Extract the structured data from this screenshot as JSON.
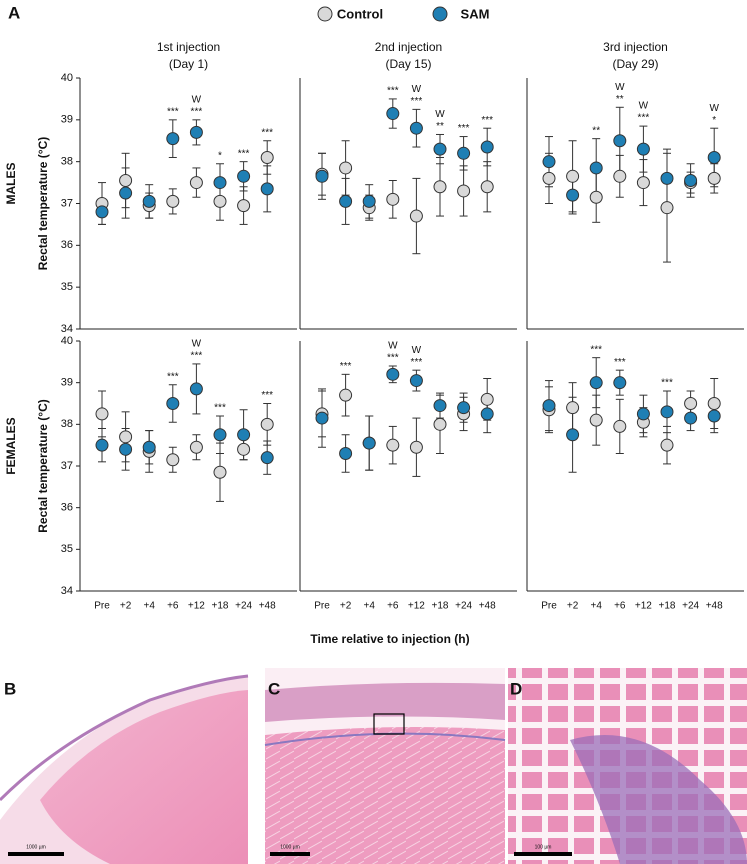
{
  "figure": {
    "panel_label": "A",
    "xlabel": "Time relative to injection (h)"
  },
  "histology": [
    {
      "label": "B",
      "scale_bar": "1000 µm"
    },
    {
      "label": "C",
      "scale_bar": "1000 µm"
    },
    {
      "label": "D",
      "scale_bar": "100 µm"
    }
  ],
  "chart_data": [
    {
      "type": "dot",
      "title": "1st injection",
      "subtitle": "(Day 1)",
      "row_label": "MALES",
      "ylabel": "Rectal temperature (°C)",
      "categories": [
        null,
        null,
        null,
        null,
        null,
        null,
        null,
        null
      ],
      "series": [
        {
          "name": "Control",
          "color": "#d9d9d9",
          "values": [
            37.0,
            37.55,
            36.95,
            37.05,
            37.5,
            37.05,
            36.95,
            38.1
          ],
          "errors": [
            0.5,
            0.65,
            0.3,
            0.3,
            0.35,
            0.45,
            0.45,
            0.4
          ]
        },
        {
          "name": "SAM",
          "color": "#1f7fb4",
          "values": [
            36.8,
            37.25,
            37.05,
            38.55,
            38.7,
            37.5,
            37.65,
            37.35
          ],
          "errors": [
            0.3,
            0.6,
            0.4,
            0.45,
            0.3,
            0.45,
            0.35,
            0.55
          ]
        }
      ],
      "annotations": [
        null,
        null,
        null,
        "***",
        [
          "W",
          "***"
        ],
        "*",
        "***",
        "***"
      ],
      "ylim": [
        34,
        40
      ],
      "yticks": [
        34,
        35,
        36,
        37,
        38,
        39,
        40
      ]
    },
    {
      "type": "dot",
      "title": "2nd injection",
      "subtitle": "(Day 15)",
      "categories": [
        null,
        null,
        null,
        null,
        null,
        null,
        null,
        null
      ],
      "series": [
        {
          "name": "Control",
          "color": "#d9d9d9",
          "values": [
            37.7,
            37.85,
            36.9,
            37.1,
            36.7,
            37.4,
            37.3,
            37.4
          ],
          "errors": [
            0.5,
            0.65,
            0.3,
            0.45,
            0.9,
            0.7,
            0.6,
            0.6
          ]
        },
        {
          "name": "SAM",
          "color": "#1f7fb4",
          "values": [
            37.65,
            37.05,
            37.05,
            39.15,
            38.8,
            38.3,
            38.2,
            38.35
          ],
          "errors": [
            0.55,
            0.55,
            0.4,
            0.35,
            0.45,
            0.35,
            0.4,
            0.45
          ]
        }
      ],
      "annotations": [
        null,
        null,
        null,
        "***",
        [
          "W",
          "***"
        ],
        [
          "W",
          "**"
        ],
        "***",
        "***"
      ],
      "ylim": [
        34,
        40
      ]
    },
    {
      "type": "dot",
      "title": "3rd injection",
      "subtitle": "(Day 29)",
      "categories": [
        null,
        null,
        null,
        null,
        null,
        null,
        null,
        null
      ],
      "series": [
        {
          "name": "Control",
          "color": "#d9d9d9",
          "values": [
            37.6,
            37.65,
            37.15,
            37.65,
            37.5,
            36.9,
            37.5,
            37.6
          ],
          "errors": [
            0.6,
            0.85,
            0.6,
            0.5,
            0.55,
            1.3,
            0.25,
            0.35
          ]
        },
        {
          "name": "SAM",
          "color": "#1f7fb4",
          "values": [
            38.0,
            37.2,
            37.85,
            38.5,
            38.3,
            37.6,
            37.55,
            38.1
          ],
          "errors": [
            0.6,
            0.45,
            0.7,
            0.8,
            0.55,
            0.7,
            0.4,
            0.7
          ]
        }
      ],
      "annotations": [
        null,
        null,
        "**",
        [
          "W",
          "**"
        ],
        [
          "W",
          "***"
        ],
        null,
        null,
        [
          "W",
          "*"
        ]
      ],
      "ylim": [
        34,
        40
      ]
    },
    {
      "type": "dot",
      "row_label": "FEMALES",
      "ylabel": "Rectal temperature (°C)",
      "categories": [
        "Pre",
        "+2",
        "+4",
        "+6",
        "+12",
        "+18",
        "+24",
        "+48"
      ],
      "series": [
        {
          "name": "Control",
          "color": "#d9d9d9",
          "values": [
            38.25,
            37.7,
            37.35,
            37.15,
            37.45,
            36.85,
            37.4,
            38.0
          ],
          "errors": [
            0.55,
            0.6,
            0.5,
            0.3,
            0.3,
            0.7,
            0.25,
            0.5
          ]
        },
        {
          "name": "SAM",
          "color": "#1f7fb4",
          "values": [
            37.5,
            37.4,
            37.45,
            38.5,
            38.85,
            37.75,
            37.75,
            37.2
          ],
          "errors": [
            0.4,
            0.5,
            0.4,
            0.45,
            0.6,
            0.45,
            0.6,
            0.4
          ]
        }
      ],
      "annotations": [
        null,
        null,
        null,
        "***",
        [
          "W",
          "***"
        ],
        "***",
        null,
        "***"
      ],
      "ylim": [
        34,
        40
      ],
      "yticks": [
        34,
        35,
        36,
        37,
        38,
        39,
        40
      ]
    },
    {
      "type": "dot",
      "categories": [
        "Pre",
        "+2",
        "+4",
        "+6",
        "+12",
        "+18",
        "+24",
        "+48"
      ],
      "series": [
        {
          "name": "Control",
          "color": "#d9d9d9",
          "values": [
            38.25,
            38.7,
            37.55,
            37.5,
            37.45,
            38.0,
            38.25,
            38.6
          ],
          "errors": [
            0.55,
            0.5,
            0.65,
            0.45,
            0.7,
            0.7,
            0.4,
            0.5
          ]
        },
        {
          "name": "SAM",
          "color": "#1f7fb4",
          "values": [
            38.15,
            37.3,
            37.55,
            39.2,
            39.05,
            38.45,
            38.4,
            38.25
          ],
          "errors": [
            0.7,
            0.45,
            0.65,
            0.2,
            0.25,
            0.3,
            0.35,
            0.45
          ]
        }
      ],
      "annotations": [
        null,
        "***",
        null,
        [
          "W",
          "***"
        ],
        [
          "W",
          "***"
        ],
        null,
        null,
        null
      ],
      "ylim": [
        34,
        40
      ]
    },
    {
      "type": "dot",
      "categories": [
        "Pre",
        "+2",
        "+4",
        "+6",
        "+12",
        "+18",
        "+24",
        "+48"
      ],
      "series": [
        {
          "name": "Control",
          "color": "#d9d9d9",
          "values": [
            38.35,
            38.4,
            38.1,
            37.95,
            38.05,
            37.5,
            38.5,
            38.5
          ],
          "errors": [
            0.55,
            0.6,
            0.6,
            0.65,
            0.35,
            0.45,
            0.3,
            0.6
          ]
        },
        {
          "name": "SAM",
          "color": "#1f7fb4",
          "values": [
            38.45,
            37.75,
            39.0,
            39.0,
            38.25,
            38.3,
            38.15,
            38.2
          ],
          "errors": [
            0.6,
            0.9,
            0.6,
            0.3,
            0.45,
            0.5,
            0.3,
            0.4
          ]
        }
      ],
      "annotations": [
        null,
        null,
        "***",
        "***",
        null,
        "***",
        null,
        null
      ],
      "ylim": [
        34,
        40
      ]
    }
  ]
}
